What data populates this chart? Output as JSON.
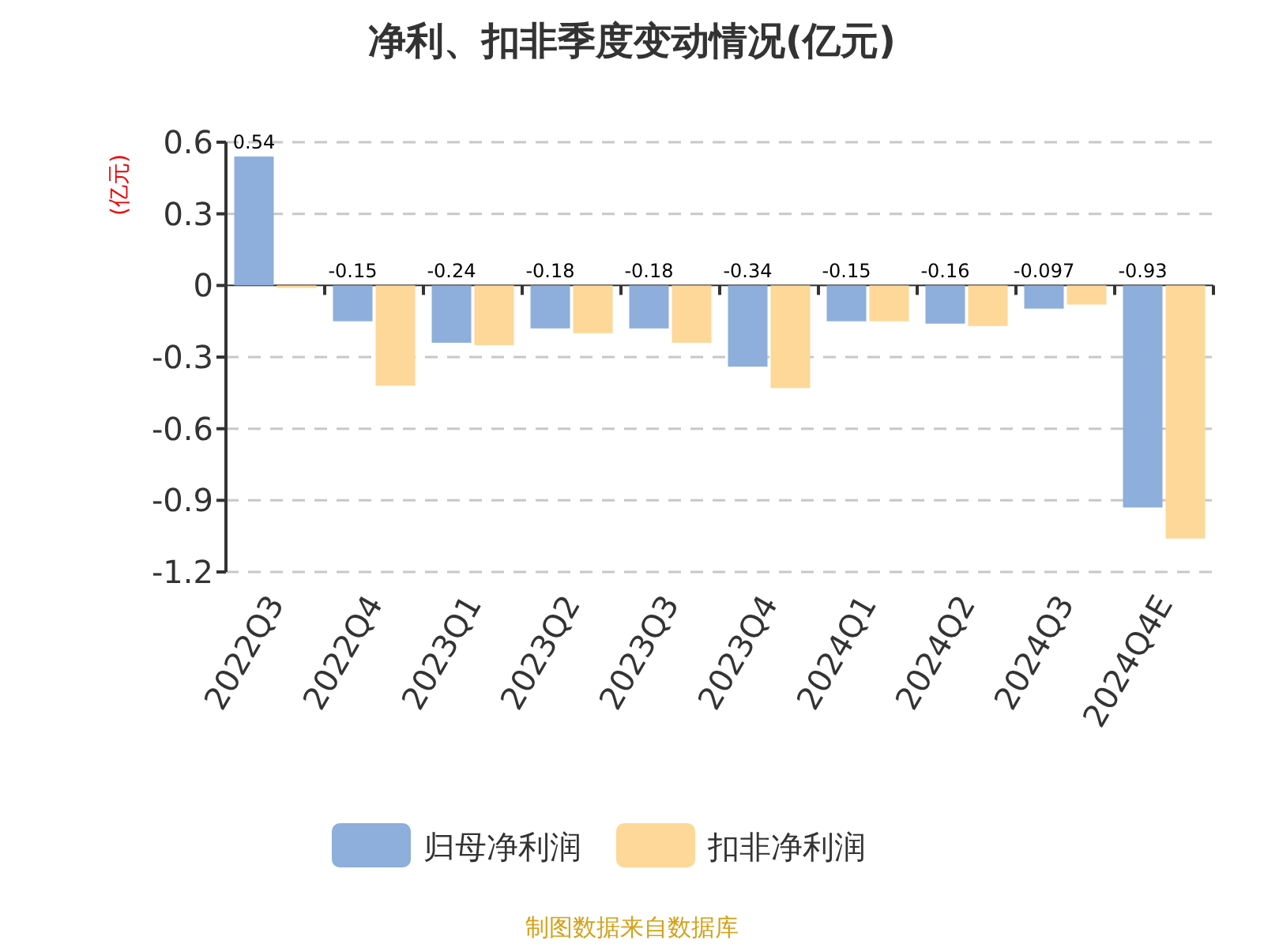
{
  "chart_data": {
    "type": "bar",
    "title": "净利、扣非季度变动情况(亿元)",
    "ylabel": "(亿元)",
    "categories": [
      "2022Q3",
      "2022Q4",
      "2023Q1",
      "2023Q2",
      "2023Q3",
      "2023Q4",
      "2024Q1",
      "2024Q2",
      "2024Q3",
      "2024Q4E"
    ],
    "series": [
      {
        "name": "归母净利润",
        "color": "#8eaedb",
        "values": [
          0.54,
          -0.15,
          -0.24,
          -0.18,
          -0.18,
          -0.34,
          -0.15,
          -0.16,
          -0.097,
          -0.93
        ],
        "value_labels": [
          "0.54",
          "-0.15",
          "-0.24",
          "-0.18",
          "-0.18",
          "-0.34",
          "-0.15",
          "-0.16",
          "-0.097",
          "-0.93"
        ]
      },
      {
        "name": "扣非净利润",
        "color": "#fed898",
        "values": [
          -0.01,
          -0.42,
          -0.25,
          -0.2,
          -0.24,
          -0.43,
          -0.15,
          -0.17,
          -0.08,
          -1.06
        ]
      }
    ],
    "ylim": [
      -1.2,
      0.6
    ],
    "yticks": [
      -1.2,
      -0.9,
      -0.6,
      -0.3,
      0,
      0.3,
      0.6
    ],
    "grid": "y",
    "legend": "bottom",
    "annotations": [
      "制图数据来自数据库"
    ]
  }
}
